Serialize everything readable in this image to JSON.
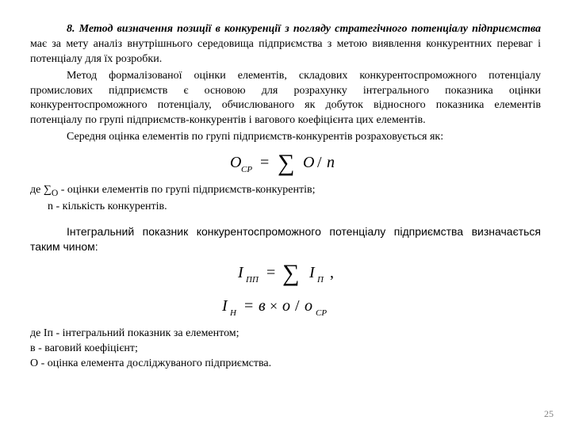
{
  "body": {
    "p1_lead": "8. Метод визначення позиції в конкуренції з погляду стратегічного потенціалу підприємства",
    "p1_rest": " має за мету аналіз внутрішнього середовища підприємства з метою виявлення конкурентних переваг і потенціалу для їх розробки.",
    "p2": "Метод формалізованої оцінки елементів, складових конкурентоспроможного потенціалу промислових підприємств є основою для розрахунку інтегрального показника оцінки конкурентоспроможного потенціалу, обчислюваного як добуток відносного показника елементів потенціалу по групі підприємств-конкурентів і вагового коефіцієнта цих елементів.",
    "p3": "Середня оцінка елементів по групі підприємств-конкурентів розраховується як:",
    "where1_a": "де ∑",
    "where1_sub": "О",
    "where1_b": " - оцінки елементів по групі підприємств-конкурентів;",
    "where2": "n - кількість конкурентів.",
    "arial_p": "Інтегральний показник конкурентоспроможного потенціалу підприємства визначається таким чином:",
    "def1": "де Іп - інтегральний показник за елементом;",
    "def2": "в - ваговий коефіцієнт;",
    "def3": "О - оцінка елемента досліджуваного підприємства."
  },
  "formulas": {
    "f1": {
      "lhs_main": "O",
      "lhs_sub": "CP",
      "rhs_sum": "O",
      "rhs_div": "n"
    },
    "f2": {
      "lhs_main": "I",
      "lhs_sub": "ПП",
      "rhs_main": "I",
      "rhs_sub": "П"
    },
    "f3": {
      "lhs_main": "I",
      "lhs_sub": "Н",
      "a": "в",
      "b": "о",
      "c_main": "о",
      "c_sub": "CP"
    }
  },
  "style": {
    "background_color": "#ffffff",
    "text_color": "#000000",
    "pagenum_color": "#7f7f7f",
    "body_fontsize_pt": 14,
    "formula_fontsize_pt": 18,
    "font_serif": "Times New Roman",
    "font_sans": "Arial"
  },
  "pagenum": "25"
}
